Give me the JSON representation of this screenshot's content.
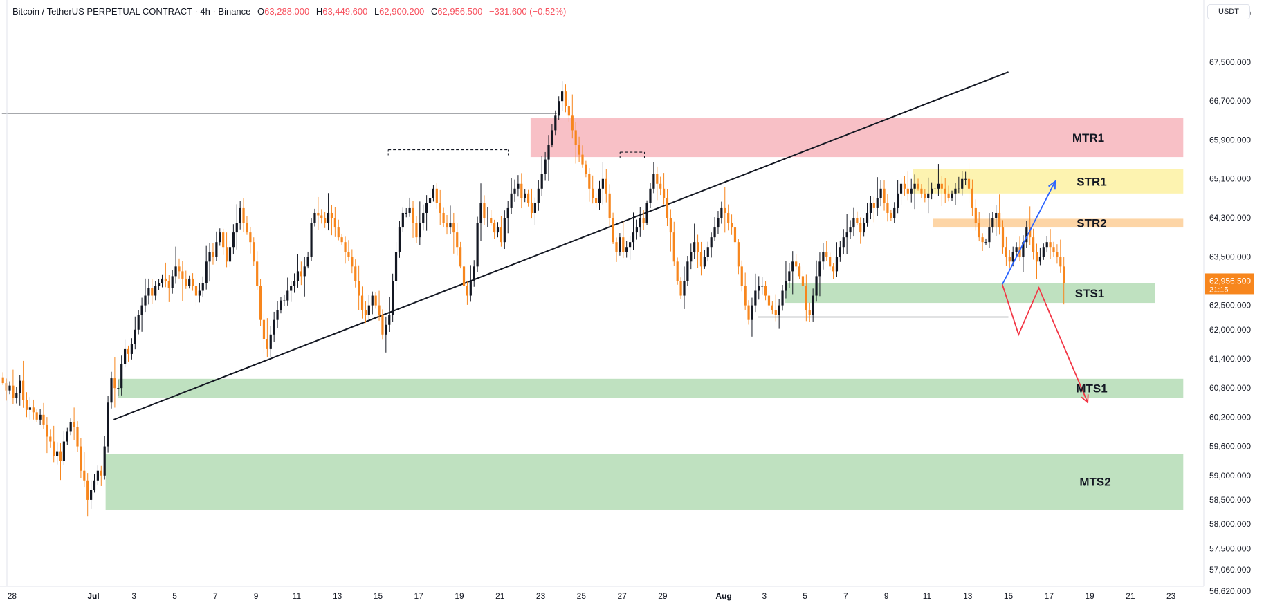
{
  "header": {
    "symbol": "Bitcoin / TetherUS PERPETUAL CONTRACT · 4h · Binance",
    "o_label": "O",
    "o_value": "63,288.000",
    "h_label": "H",
    "h_value": "63,449.600",
    "l_label": "L",
    "l_value": "62,900.200",
    "c_label": "C",
    "c_value": "62,956.500",
    "change": "−331.600 (−0.52%)"
  },
  "currency": "USDT",
  "colors": {
    "up": "#131722",
    "down": "#f7861d",
    "background": "#ffffff",
    "mtr1": "#f8c0c6",
    "str1": "#fdf3b0",
    "str2": "#fdd5a6",
    "support": "#bfe1c0",
    "blue_arrow": "#2962ff",
    "red_arrow": "#f23645",
    "last_price_bg": "#f7861d"
  },
  "price_axis": {
    "ticks": [
      "68,500.000",
      "67,500.000",
      "66,700.000",
      "65,900.000",
      "65,100.000",
      "64,300.000",
      "63,500.000",
      "62,500.000",
      "62,000.000",
      "61,400.000",
      "60,800.000",
      "60,200.000",
      "59,600.000",
      "59,000.000",
      "58,500.000",
      "58,000.000",
      "57,500.000",
      "57,060.000",
      "56,620.000"
    ],
    "last_price": "62,956.500",
    "countdown": "21:15"
  },
  "time_axis": {
    "ticks": [
      {
        "label": "28",
        "day": -3
      },
      {
        "label": "Jul",
        "day": 1,
        "bold": true
      },
      {
        "label": "3",
        "day": 3
      },
      {
        "label": "5",
        "day": 5
      },
      {
        "label": "7",
        "day": 7
      },
      {
        "label": "9",
        "day": 9
      },
      {
        "label": "11",
        "day": 11
      },
      {
        "label": "13",
        "day": 13
      },
      {
        "label": "15",
        "day": 15
      },
      {
        "label": "17",
        "day": 17
      },
      {
        "label": "19",
        "day": 19
      },
      {
        "label": "21",
        "day": 21
      },
      {
        "label": "23",
        "day": 23
      },
      {
        "label": "25",
        "day": 25
      },
      {
        "label": "27",
        "day": 27
      },
      {
        "label": "29",
        "day": 29
      },
      {
        "label": "Aug",
        "day": 32,
        "bold": true
      },
      {
        "label": "3",
        "day": 34
      },
      {
        "label": "5",
        "day": 36
      },
      {
        "label": "7",
        "day": 38
      },
      {
        "label": "9",
        "day": 40
      },
      {
        "label": "11",
        "day": 42
      },
      {
        "label": "13",
        "day": 44
      },
      {
        "label": "15",
        "day": 46
      },
      {
        "label": "17",
        "day": 48
      },
      {
        "label": "19",
        "day": 50
      },
      {
        "label": "21",
        "day": 52
      },
      {
        "label": "23",
        "day": 54
      }
    ]
  },
  "chart_data": {
    "type": "candlestick",
    "symbol": "Bitcoin / TetherUS PERPETUAL CONTRACT",
    "interval": "4h",
    "exchange": "Binance",
    "x_start": "2024-06-27",
    "ylim": [
      56400,
      69500
    ],
    "xlim_days": [
      -3.5,
      55.0
    ],
    "candles_close": [
      60900,
      60750,
      60850,
      60600,
      60700,
      60950,
      60550,
      60350,
      60400,
      60300,
      60150,
      60250,
      60050,
      59800,
      59700,
      59400,
      59500,
      59300,
      59700,
      59900,
      60100,
      60000,
      59600,
      59100,
      58900,
      58500,
      58700,
      58900,
      59100,
      59000,
      59600,
      60500,
      61000,
      60800,
      60800,
      61300,
      61600,
      61500,
      61700,
      62000,
      62300,
      62500,
      62700,
      62850,
      62700,
      62900,
      62950,
      63050,
      63000,
      62850,
      63100,
      63300,
      63200,
      63050,
      62900,
      63050,
      62900,
      62700,
      62800,
      62950,
      63400,
      63600,
      63500,
      63800,
      64000,
      63700,
      63400,
      63700,
      64000,
      64200,
      64500,
      64200,
      64000,
      63800,
      63400,
      62900,
      62200,
      61800,
      61600,
      61900,
      62200,
      62400,
      62600,
      62600,
      62800,
      62900,
      63000,
      63200,
      63100,
      63300,
      63500,
      64200,
      64400,
      64350,
      64300,
      64200,
      64400,
      64300,
      64100,
      63900,
      63800,
      63600,
      63500,
      63300,
      63000,
      62700,
      62400,
      62300,
      62500,
      62700,
      62500,
      62300,
      61900,
      62100,
      62300,
      63000,
      63600,
      64100,
      64400,
      64400,
      64500,
      64200,
      63900,
      64200,
      64400,
      64600,
      64700,
      64900,
      64600,
      64400,
      64200,
      64100,
      64200,
      64000,
      63700,
      63300,
      62900,
      62700,
      63000,
      63300,
      64200,
      64600,
      64300,
      64300,
      64200,
      64000,
      64100,
      63800,
      64300,
      64500,
      64800,
      64900,
      65000,
      64700,
      64800,
      64600,
      64400,
      64600,
      64900,
      65200,
      65500,
      65800,
      66100,
      66400,
      66700,
      66900,
      66600,
      66400,
      66100,
      65800,
      65600,
      65400,
      65200,
      64900,
      64700,
      64600,
      64900,
      65100,
      64800,
      64300,
      63800,
      63600,
      63900,
      63600,
      63700,
      63800,
      64000,
      64100,
      64300,
      64200,
      64600,
      64900,
      65200,
      65000,
      64900,
      64700,
      64300,
      64000,
      63400,
      63000,
      62700,
      63000,
      63400,
      63600,
      63800,
      63600,
      63300,
      63500,
      63700,
      63900,
      64100,
      64300,
      64500,
      64400,
      64200,
      64100,
      63800,
      63300,
      62900,
      62500,
      62200,
      62500,
      62800,
      62900,
      62900,
      62700,
      62500,
      62400,
      62300,
      62500,
      62800,
      63000,
      63200,
      63400,
      63300,
      63100,
      62900,
      62400,
      62300,
      62700,
      63100,
      63400,
      63600,
      63500,
      63300,
      63200,
      63500,
      63700,
      63900,
      64000,
      64100,
      64300,
      64200,
      64000,
      64200,
      64400,
      64600,
      64500,
      64700,
      64900,
      64600,
      64400,
      64300,
      64500,
      64800,
      65000,
      64900,
      64800,
      64900,
      65000,
      64900,
      64800,
      64700,
      64800,
      64900,
      64900,
      65000,
      64900,
      64800,
      64700,
      64800,
      64900,
      64900,
      65100,
      65100,
      64900,
      64500,
      64200,
      63900,
      63800,
      63800,
      64100,
      64300,
      64400,
      64100,
      63700,
      63500,
      63400,
      63600,
      63700,
      63500,
      63800,
      64100,
      63900,
      63600,
      63400,
      63500,
      63700,
      63800,
      63700,
      63600,
      63500,
      63300,
      62957
    ],
    "zones": [
      {
        "label": "MTR1",
        "low": 65550,
        "high": 66350,
        "from_day": 22.5,
        "to_day": 54.6,
        "color": "#f8c0c6"
      },
      {
        "label": "STR1",
        "low": 64800,
        "high": 65300,
        "from_day": 41.3,
        "to_day": 54.6,
        "color": "#fdf3b0"
      },
      {
        "label": "STR2",
        "low": 64100,
        "high": 64280,
        "from_day": 42.3,
        "to_day": 54.6,
        "color": "#fdd5a6"
      },
      {
        "label": "STS1",
        "low": 62550,
        "high": 62950,
        "from_day": 35.0,
        "to_day": 53.2,
        "color": "#bfe1c0"
      },
      {
        "label": "MTS1",
        "low": 60600,
        "high": 60990,
        "from_day": 2.2,
        "to_day": 54.6,
        "color": "#bfe1c0"
      },
      {
        "label": "MTS2",
        "low": 58300,
        "high": 59450,
        "from_day": 1.6,
        "to_day": 54.6,
        "color": "#bfe1c0"
      }
    ],
    "lines": [
      {
        "name": "resistance-line",
        "points": [
          [
            -3.5,
            66450
          ],
          [
            23.8,
            66450
          ]
        ],
        "style": "solid"
      },
      {
        "name": "swing-high-dashed",
        "points": [
          [
            15.5,
            65700
          ],
          [
            21.4,
            65700
          ]
        ],
        "style": "dashed"
      },
      {
        "name": "swing-high-dashed-2",
        "points": [
          [
            26.9,
            65650
          ],
          [
            28.1,
            65650
          ]
        ],
        "style": "dashed"
      },
      {
        "name": "ascending-trendline",
        "points": [
          [
            2.0,
            60150
          ],
          [
            46.0,
            67300
          ]
        ],
        "style": "solid"
      },
      {
        "name": "support-line",
        "points": [
          [
            33.7,
            62260
          ],
          [
            46.0,
            62260
          ]
        ],
        "style": "solid"
      }
    ],
    "projections": [
      {
        "name": "bullish-projection",
        "color": "#2962ff",
        "points": [
          [
            45.7,
            62930
          ],
          [
            48.3,
            65050
          ]
        ]
      },
      {
        "name": "bearish-projection",
        "color": "#f23645",
        "points": [
          [
            45.7,
            62930
          ],
          [
            46.5,
            61900
          ],
          [
            47.5,
            62860
          ],
          [
            49.9,
            60500
          ]
        ]
      }
    ]
  }
}
